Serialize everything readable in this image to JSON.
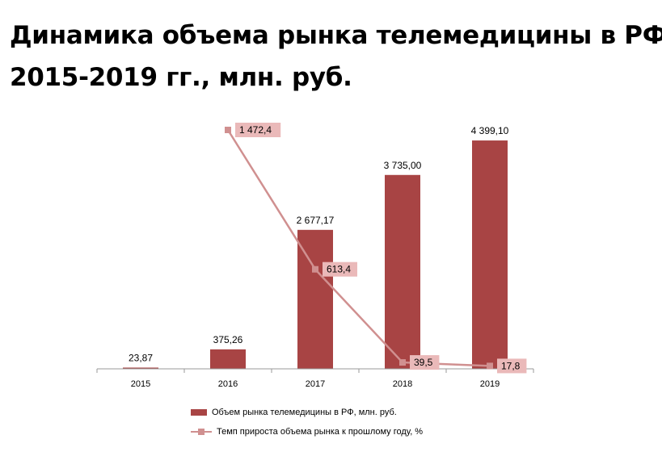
{
  "title_line1": "Динамика объема рынка телемедицины в РФ,",
  "title_line2": "2015-2019 гг., млн. руб.",
  "chart_data": {
    "type": "bar",
    "categories": [
      "2015",
      "2016",
      "2017",
      "2018",
      "2019"
    ],
    "series": [
      {
        "name": "Объем рынка телемедицины  в РФ, млн. руб.",
        "kind": "bar",
        "values": [
          23.87,
          375.26,
          2677.17,
          3735.0,
          4399.1
        ],
        "labels": [
          "23,87",
          "375,26",
          "2 677,17",
          "3 735,00",
          "4 399,10"
        ],
        "color": "#a84444"
      },
      {
        "name": "Темп прироста объема рынка к прошлому году, %",
        "kind": "line",
        "values": [
          null,
          1472.4,
          613.4,
          39.5,
          17.8
        ],
        "labels": [
          "",
          "1 472,4",
          "613,4",
          "39,5",
          "17,8"
        ],
        "color": "#d09090",
        "label_bg": "#eab9b9"
      }
    ],
    "bar_axis_range": [
      0,
      4400
    ],
    "line_axis_range": [
      0,
      1500
    ],
    "grid": false,
    "legend_position": "bottom"
  }
}
